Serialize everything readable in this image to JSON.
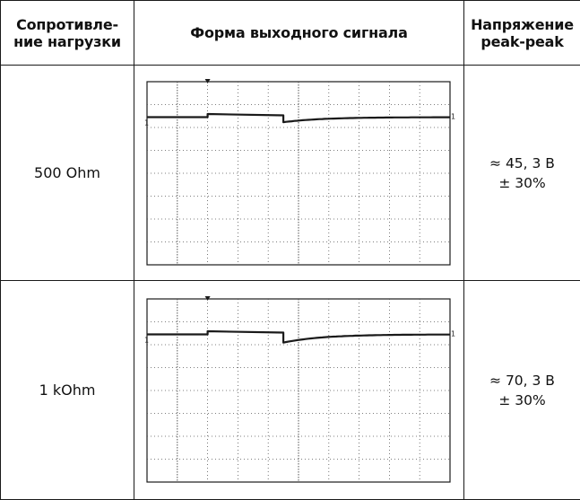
{
  "table": {
    "headers": {
      "load": [
        "Сопротивле-",
        "ние нагрузки"
      ],
      "waveform": "Форма выходного сигнала",
      "voltage": [
        "Напряжение",
        "peak-peak"
      ]
    },
    "rows": [
      {
        "load": "500 Ohm",
        "voltage_value": "≈ 45, 3 В",
        "voltage_tolerance": "± 30%",
        "trace": {
          "level_marker": "1",
          "base_level": 0,
          "pulse_level": 0.25,
          "dip_level": -0.4
        }
      },
      {
        "load": "1 kOhm",
        "voltage_value": "≈ 70, 3 В",
        "voltage_tolerance": "± 30%",
        "trace": {
          "level_marker": "1",
          "base_level": 0,
          "pulse_level": 0.25,
          "dip_level": -0.65
        }
      }
    ]
  },
  "colors": {
    "trace": "#1a1a1a",
    "grid": "#555555",
    "frame": "#1a1a1a"
  }
}
